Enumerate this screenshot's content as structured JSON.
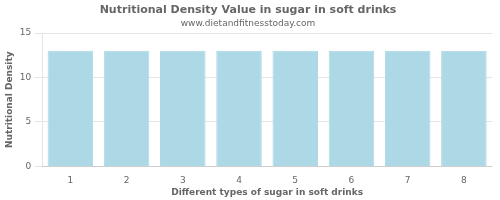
{
  "chart_data": {
    "type": "bar",
    "title": "Nutritional Density Value in sugar in soft drinks",
    "subtitle": "www.dietandfitnesstoday.com",
    "xlabel": "Different types of sugar in soft drinks",
    "ylabel": "Nutritional Density",
    "categories": [
      1,
      2,
      3,
      4,
      5,
      6,
      7,
      8
    ],
    "values": [
      13.0,
      13.0,
      13.0,
      13.0,
      13.0,
      13.0,
      13.0,
      13.0
    ],
    "color": "#add8e6",
    "ylim": [
      0,
      15
    ],
    "yticks": [
      0,
      5,
      10,
      15
    ],
    "grid": true
  }
}
